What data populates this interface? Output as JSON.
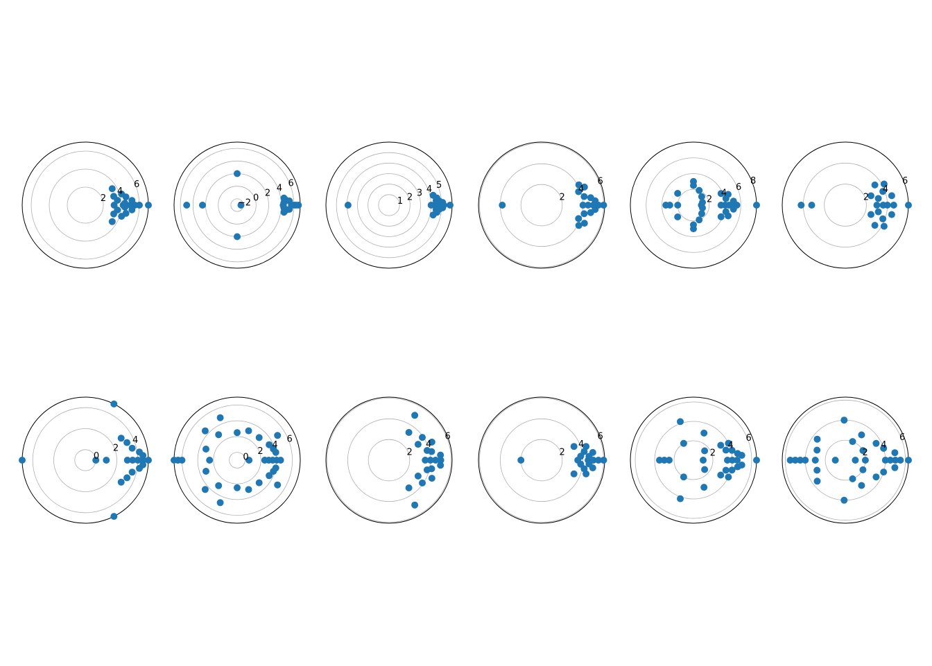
{
  "chart_data": [
    {
      "type": "scatter",
      "polar": true,
      "rticks": [
        "2",
        "4",
        "6"
      ],
      "rvals": [
        2,
        4,
        6
      ],
      "rmax": 7,
      "grid": true,
      "points": [
        [
          7,
          0
        ],
        [
          6,
          0
        ],
        [
          5.5,
          0
        ],
        [
          5,
          0
        ],
        [
          4.5,
          0
        ],
        [
          4.2,
          0
        ],
        [
          3.2,
          0
        ],
        [
          3.6,
          0.15
        ],
        [
          3.6,
          -0.15
        ],
        [
          3.3,
          0.3
        ],
        [
          3.3,
          -0.3
        ],
        [
          4.2,
          0.3
        ],
        [
          4.2,
          -0.3
        ],
        [
          4.6,
          0.2
        ],
        [
          4.6,
          -0.2
        ],
        [
          5.2,
          0.1
        ],
        [
          5.2,
          -0.1
        ],
        [
          3.5,
          0.55
        ],
        [
          3.5,
          -0.55
        ],
        [
          4.4,
          0.05
        ],
        [
          4.4,
          -0.05
        ]
      ]
    },
    {
      "type": "scatter",
      "polar": true,
      "rticks": [
        "−2",
        "0",
        "2",
        "4",
        "6"
      ],
      "rvals": [
        -2,
        0,
        2,
        4,
        6
      ],
      "rmin": -3,
      "rmax": 7,
      "grid": true,
      "points": [
        [
          5,
          3.1416
        ],
        [
          2.5,
          3.1416
        ],
        [
          -2.4,
          0
        ],
        [
          2,
          1.5708
        ],
        [
          2,
          -1.5708
        ],
        [
          6.7,
          0
        ],
        [
          6.3,
          0
        ],
        [
          6,
          0
        ],
        [
          5.6,
          0
        ],
        [
          4.3,
          0
        ],
        [
          4.8,
          0.1
        ],
        [
          4.8,
          -0.1
        ],
        [
          4.5,
          0.15
        ],
        [
          4.5,
          -0.15
        ],
        [
          5.3,
          0.08
        ],
        [
          5.3,
          -0.08
        ],
        [
          4.4,
          0.05
        ],
        [
          4.4,
          -0.05
        ]
      ]
    },
    {
      "type": "scatter",
      "polar": true,
      "rticks": [
        "1",
        "2",
        "3",
        "4",
        "5"
      ],
      "rvals": [
        1,
        2,
        3,
        4,
        5
      ],
      "rmax": 6,
      "grid": true,
      "points": [
        [
          5.8,
          0
        ],
        [
          5.2,
          0
        ],
        [
          4.8,
          0
        ],
        [
          4.6,
          0
        ],
        [
          4.3,
          0
        ],
        [
          4.0,
          0
        ],
        [
          3.9,
          3.1416
        ],
        [
          4.5,
          0.1
        ],
        [
          4.5,
          -0.1
        ],
        [
          4.8,
          0.08
        ],
        [
          4.8,
          -0.08
        ],
        [
          4.3,
          0.22
        ],
        [
          4.3,
          -0.22
        ],
        [
          5.1,
          0.05
        ],
        [
          5.1,
          -0.05
        ],
        [
          4.6,
          0.15
        ],
        [
          4.6,
          -0.15
        ]
      ]
    },
    {
      "type": "scatter",
      "polar": true,
      "rticks": [
        "2",
        "4",
        "6"
      ],
      "rvals": [
        2,
        4,
        6
      ],
      "rmax": 6.1,
      "grid": true,
      "points": [
        [
          6,
          0
        ],
        [
          5.5,
          0
        ],
        [
          5,
          0
        ],
        [
          4.5,
          0
        ],
        [
          4,
          0
        ],
        [
          3.8,
          3.1416
        ],
        [
          3.8,
          0.35
        ],
        [
          3.8,
          -0.35
        ],
        [
          4.5,
          0.4
        ],
        [
          4.5,
          -0.4
        ],
        [
          4.2,
          0.2
        ],
        [
          4.2,
          -0.2
        ],
        [
          4.8,
          0.15
        ],
        [
          4.8,
          -0.15
        ],
        [
          5.2,
          0.08
        ],
        [
          5.2,
          -0.08
        ],
        [
          4.1,
          0.5
        ],
        [
          4.1,
          -0.5
        ]
      ]
    },
    {
      "type": "scatter",
      "polar": true,
      "rticks": [
        "2",
        "4",
        "6",
        "8"
      ],
      "rvals": [
        2,
        4,
        6,
        8
      ],
      "rmax": 8,
      "grid": true,
      "points": [
        [
          8,
          0
        ],
        [
          5.5,
          0
        ],
        [
          5,
          0
        ],
        [
          4.5,
          0
        ],
        [
          4,
          0
        ],
        [
          3.5,
          0
        ],
        [
          1,
          0
        ],
        [
          3,
          3.1416
        ],
        [
          3.5,
          3.1416
        ],
        [
          2,
          3.1416
        ],
        [
          3,
          1.5708
        ],
        [
          3,
          -1.5708
        ],
        [
          2.5,
          1.5708
        ],
        [
          2.5,
          -1.5708
        ],
        [
          1.5,
          0.8
        ],
        [
          1.5,
          -0.8
        ],
        [
          2,
          1.2
        ],
        [
          2,
          -1.2
        ],
        [
          4.2,
          0.2
        ],
        [
          4.2,
          -0.2
        ],
        [
          4.6,
          0.3
        ],
        [
          4.6,
          -0.3
        ],
        [
          3.8,
          0.4
        ],
        [
          3.8,
          -0.4
        ],
        [
          5.1,
          0.1
        ],
        [
          5.1,
          -0.1
        ],
        [
          2.5,
          2.5
        ],
        [
          2.5,
          -2.5
        ],
        [
          1.2,
          0.3
        ],
        [
          1.2,
          -0.3
        ]
      ]
    },
    {
      "type": "scatter",
      "polar": true,
      "rticks": [
        "2",
        "4",
        "6"
      ],
      "rvals": [
        2,
        4,
        6
      ],
      "rmax": 6,
      "grid": true,
      "points": [
        [
          6,
          0
        ],
        [
          4.6,
          0
        ],
        [
          4,
          0
        ],
        [
          3.6,
          0
        ],
        [
          3,
          0
        ],
        [
          4.2,
          3.1416
        ],
        [
          3.2,
          3.1416
        ],
        [
          3.8,
          0.35
        ],
        [
          3.8,
          -0.35
        ],
        [
          4.2,
          0.5
        ],
        [
          4.2,
          -0.5
        ],
        [
          3.4,
          0.6
        ],
        [
          3.4,
          -0.6
        ],
        [
          4.5,
          0.2
        ],
        [
          4.5,
          -0.2
        ],
        [
          3.2,
          0.2
        ],
        [
          3.2,
          -0.2
        ],
        [
          2.6,
          0.35
        ],
        [
          2.6,
          -0.35
        ]
      ]
    },
    {
      "type": "scatter",
      "polar": true,
      "rticks": [
        "0",
        "2",
        "4"
      ],
      "rvals": [
        0,
        2,
        4
      ],
      "rmin": -1,
      "rmax": 5,
      "grid": true,
      "points": [
        [
          5,
          0
        ],
        [
          4.5,
          0
        ],
        [
          4,
          0
        ],
        [
          3.5,
          0
        ],
        [
          3,
          0
        ],
        [
          1,
          0
        ],
        [
          0,
          0
        ],
        [
          5,
          3.1416
        ],
        [
          5,
          1.1
        ],
        [
          5,
          -1.1
        ],
        [
          3,
          0.55
        ],
        [
          3,
          -0.55
        ],
        [
          3.6,
          0.25
        ],
        [
          3.6,
          -0.25
        ],
        [
          4.2,
          0.15
        ],
        [
          4.2,
          -0.15
        ],
        [
          3.3,
          0.4
        ],
        [
          3.3,
          -0.4
        ],
        [
          4.5,
          0.08
        ],
        [
          4.5,
          -0.08
        ]
      ]
    },
    {
      "type": "scatter",
      "polar": true,
      "rticks": [
        "0",
        "2",
        "4",
        "6"
      ],
      "rvals": [
        0,
        2,
        4,
        6
      ],
      "rmin": -1,
      "rmax": 7,
      "grid": true,
      "points": [
        [
          7,
          3.1416
        ],
        [
          6.5,
          3.1416
        ],
        [
          6,
          3.1416
        ],
        [
          2.5,
          3.1416
        ],
        [
          0.5,
          0
        ],
        [
          2.5,
          0
        ],
        [
          4.5,
          0
        ],
        [
          4,
          0
        ],
        [
          3.5,
          0
        ],
        [
          3,
          0
        ],
        [
          2.5,
          1.5708
        ],
        [
          2.5,
          -1.5708
        ],
        [
          3,
          0.8
        ],
        [
          3,
          -0.8
        ],
        [
          3.8,
          0.3
        ],
        [
          3.8,
          -0.3
        ],
        [
          4,
          0.2
        ],
        [
          4,
          -0.2
        ],
        [
          3.5,
          0.45
        ],
        [
          3.5,
          -0.45
        ],
        [
          4.8,
          1.95
        ],
        [
          4.8,
          -1.95
        ],
        [
          3,
          2.2
        ],
        [
          3,
          -2.2
        ],
        [
          3,
          1.2
        ],
        [
          3,
          -1.2
        ],
        [
          4.5,
          2.4
        ],
        [
          4.5,
          -2.4
        ],
        [
          3.2,
          2.8
        ],
        [
          3.2,
          -2.8
        ],
        [
          5,
          0.55
        ],
        [
          5,
          -0.55
        ]
      ]
    },
    {
      "type": "scatter",
      "polar": true,
      "rticks": [
        "2",
        "4",
        "6"
      ],
      "rvals": [
        2,
        4,
        6
      ],
      "rmax": 6.1,
      "grid": true,
      "points": [
        [
          5,
          0
        ],
        [
          4.5,
          0
        ],
        [
          4,
          0
        ],
        [
          3.5,
          0
        ],
        [
          3.2,
          0.5
        ],
        [
          3.2,
          -0.5
        ],
        [
          3.8,
          0.25
        ],
        [
          3.8,
          -0.25
        ],
        [
          4.2,
          0.2
        ],
        [
          4.2,
          -0.2
        ],
        [
          5,
          1.05
        ],
        [
          5,
          -1.05
        ],
        [
          3.3,
          0.95
        ],
        [
          3.3,
          -0.95
        ],
        [
          4.5,
          0.4
        ],
        [
          4.5,
          -0.4
        ],
        [
          3.9,
          0.6
        ],
        [
          3.9,
          -0.6
        ],
        [
          5,
          0.1
        ],
        [
          5,
          -0.1
        ]
      ]
    },
    {
      "type": "scatter",
      "polar": true,
      "rticks": [
        "2",
        "4",
        "6"
      ],
      "rvals": [
        2,
        4,
        6
      ],
      "rmax": 6.1,
      "grid": true,
      "points": [
        [
          6,
          0
        ],
        [
          5.5,
          0
        ],
        [
          5,
          0
        ],
        [
          4.5,
          0
        ],
        [
          3.5,
          0
        ],
        [
          2,
          3.1416
        ],
        [
          3.4,
          0.4
        ],
        [
          3.4,
          -0.4
        ],
        [
          4.5,
          0.3
        ],
        [
          4.5,
          -0.3
        ],
        [
          4.2,
          0.2
        ],
        [
          4.2,
          -0.2
        ],
        [
          5,
          0.15
        ],
        [
          5,
          -0.15
        ],
        [
          3.8,
          0.1
        ],
        [
          3.8,
          -0.1
        ],
        [
          4.6,
          0.08
        ],
        [
          4.6,
          -0.08
        ]
      ]
    },
    {
      "type": "scatter",
      "polar": true,
      "rticks": [
        "2",
        "4",
        "6"
      ],
      "rvals": [
        2,
        4,
        6
      ],
      "rmax": 6.5,
      "grid": true,
      "points": [
        [
          6.5,
          0
        ],
        [
          4.5,
          0
        ],
        [
          4,
          0
        ],
        [
          3.5,
          0
        ],
        [
          1,
          0
        ],
        [
          3.5,
          3.1416
        ],
        [
          3,
          3.1416
        ],
        [
          2.5,
          3.1416
        ],
        [
          3.5,
          0.3
        ],
        [
          3.5,
          -0.3
        ],
        [
          4.1,
          0.25
        ],
        [
          4.1,
          -0.25
        ],
        [
          4.6,
          0.15
        ],
        [
          4.6,
          -0.15
        ],
        [
          3.2,
          0.5
        ],
        [
          3.2,
          -0.5
        ],
        [
          3,
          1.2
        ],
        [
          3,
          -1.2
        ],
        [
          4,
          0.45
        ],
        [
          4,
          -0.45
        ],
        [
          4.2,
          1.9
        ],
        [
          4.2,
          -1.9
        ],
        [
          2,
          2.1
        ],
        [
          2,
          -2.1
        ],
        [
          1.5,
          0.7
        ],
        [
          1.5,
          -0.7
        ],
        [
          5,
          0.1
        ],
        [
          5,
          -0.1
        ]
      ]
    },
    {
      "type": "scatter",
      "polar": true,
      "rticks": [
        "2",
        "4",
        "6"
      ],
      "rvals": [
        2,
        4,
        6
      ],
      "rmax": 6.3,
      "grid": true,
      "points": [
        [
          6.3,
          0
        ],
        [
          5.5,
          0
        ],
        [
          5,
          0
        ],
        [
          4.5,
          0
        ],
        [
          4,
          0
        ],
        [
          2,
          0
        ],
        [
          1,
          0
        ],
        [
          5.5,
          3.1416
        ],
        [
          5,
          3.1416
        ],
        [
          4.5,
          3.1416
        ],
        [
          4,
          3.1416
        ],
        [
          3,
          3.1416
        ],
        [
          1,
          3.1416
        ],
        [
          4,
          0.3
        ],
        [
          4,
          -0.3
        ],
        [
          5,
          0.15
        ],
        [
          5,
          -0.15
        ],
        [
          3.5,
          0.5
        ],
        [
          3.5,
          -0.5
        ],
        [
          4,
          1.6
        ],
        [
          4,
          -1.6
        ],
        [
          3,
          1
        ],
        [
          3,
          -1
        ],
        [
          2,
          1.2
        ],
        [
          2,
          -1.2
        ],
        [
          3.5,
          2.5
        ],
        [
          3.5,
          -2.5
        ],
        [
          3,
          2.8
        ],
        [
          3,
          -2.8
        ],
        [
          2,
          0.5
        ],
        [
          2,
          -0.5
        ]
      ]
    }
  ]
}
